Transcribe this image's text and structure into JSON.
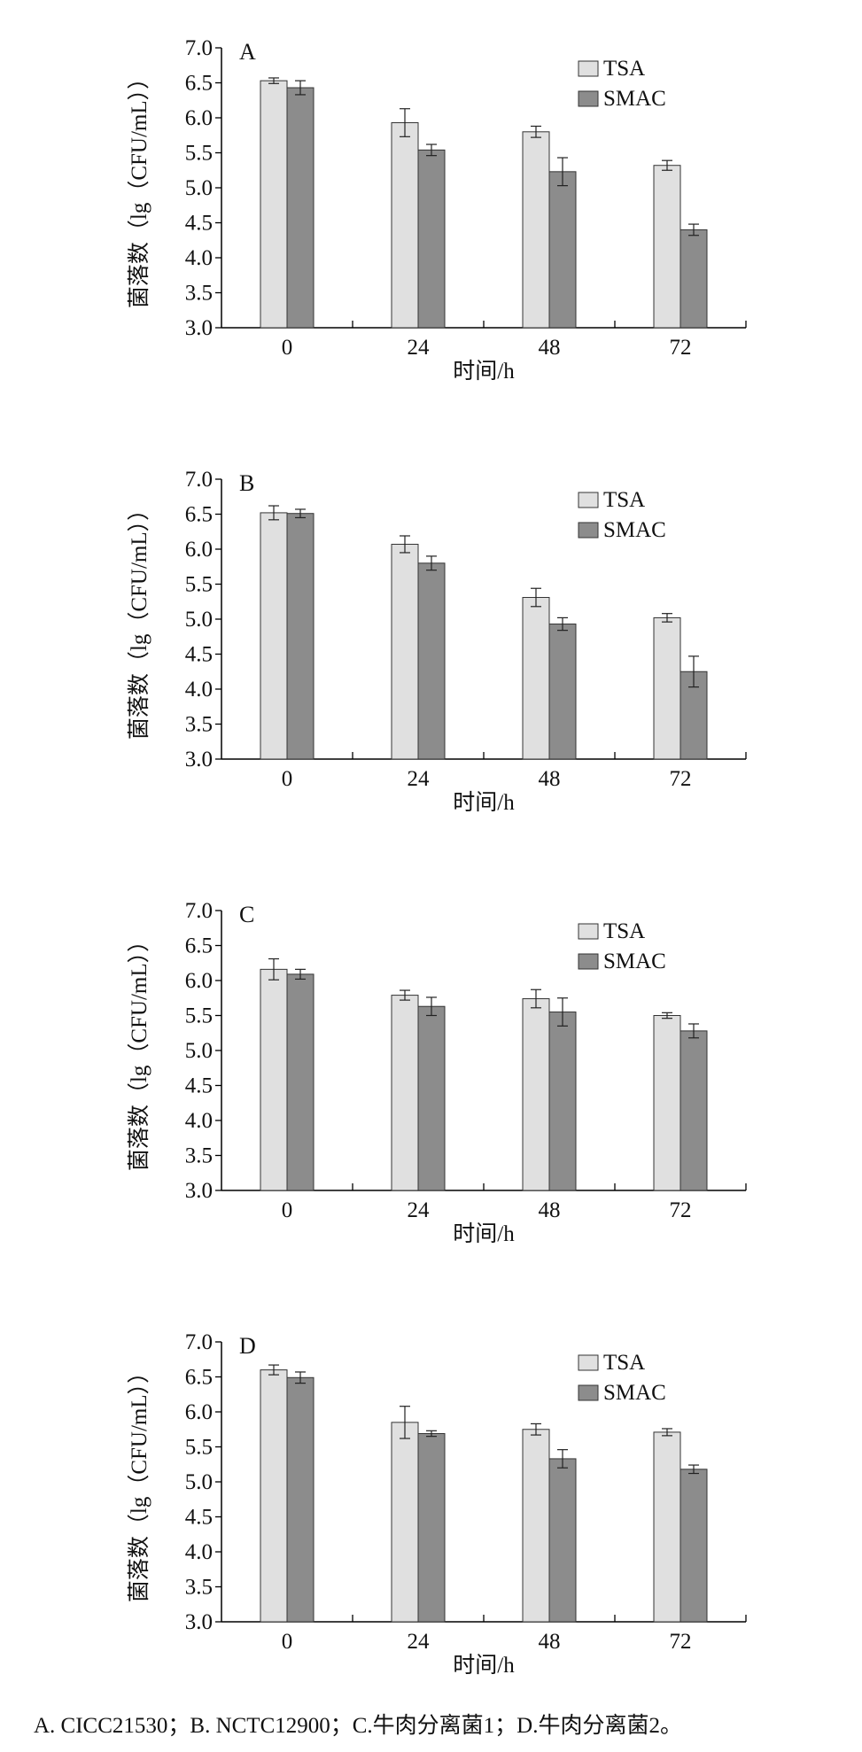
{
  "chart_data": [
    {
      "type": "bar",
      "panel_label": "A",
      "categories": [
        "0",
        "24",
        "48",
        "72"
      ],
      "xlabel": "时间/h",
      "ylabel": "菌落数（lg（CFU/mL））",
      "ylim": [
        3.0,
        7.0
      ],
      "yticks": [
        "3.0",
        "3.5",
        "4.0",
        "4.5",
        "5.0",
        "5.5",
        "6.0",
        "6.5",
        "7.0"
      ],
      "legend_position": "top-right",
      "series": [
        {
          "name": "TSA",
          "color": "#e0e0e0",
          "values": [
            6.53,
            5.93,
            5.8,
            5.32
          ],
          "errors": [
            0.04,
            0.2,
            0.08,
            0.07
          ]
        },
        {
          "name": "SMAC",
          "color": "#8c8c8c",
          "values": [
            6.43,
            5.54,
            5.23,
            4.4
          ],
          "errors": [
            0.1,
            0.08,
            0.2,
            0.08
          ]
        }
      ]
    },
    {
      "type": "bar",
      "panel_label": "B",
      "categories": [
        "0",
        "24",
        "48",
        "72"
      ],
      "xlabel": "时间/h",
      "ylabel": "菌落数（lg（CFU/mL））",
      "ylim": [
        3.0,
        7.0
      ],
      "yticks": [
        "3.0",
        "3.5",
        "4.0",
        "4.5",
        "5.0",
        "5.5",
        "6.0",
        "6.5",
        "7.0"
      ],
      "legend_position": "top-right",
      "series": [
        {
          "name": "TSA",
          "color": "#e0e0e0",
          "values": [
            6.52,
            6.07,
            5.31,
            5.02
          ],
          "errors": [
            0.1,
            0.12,
            0.13,
            0.06
          ]
        },
        {
          "name": "SMAC",
          "color": "#8c8c8c",
          "values": [
            6.51,
            5.8,
            4.93,
            4.25
          ],
          "errors": [
            0.06,
            0.1,
            0.09,
            0.22
          ]
        }
      ]
    },
    {
      "type": "bar",
      "panel_label": "C",
      "categories": [
        "0",
        "24",
        "48",
        "72"
      ],
      "xlabel": "时间/h",
      "ylabel": "菌落数（lg（CFU/mL））",
      "ylim": [
        3.0,
        7.0
      ],
      "yticks": [
        "3.0",
        "3.5",
        "4.0",
        "4.5",
        "5.0",
        "5.5",
        "6.0",
        "6.5",
        "7.0"
      ],
      "legend_position": "top-right",
      "series": [
        {
          "name": "TSA",
          "color": "#e0e0e0",
          "values": [
            6.16,
            5.79,
            5.74,
            5.5
          ],
          "errors": [
            0.15,
            0.07,
            0.13,
            0.04
          ]
        },
        {
          "name": "SMAC",
          "color": "#8c8c8c",
          "values": [
            6.09,
            5.63,
            5.55,
            5.28
          ],
          "errors": [
            0.07,
            0.13,
            0.2,
            0.1
          ]
        }
      ]
    },
    {
      "type": "bar",
      "panel_label": "D",
      "categories": [
        "0",
        "24",
        "48",
        "72"
      ],
      "xlabel": "时间/h",
      "ylabel": "菌落数（lg（CFU/mL））",
      "ylim": [
        3.0,
        7.0
      ],
      "yticks": [
        "3.0",
        "3.5",
        "4.0",
        "4.5",
        "5.0",
        "5.5",
        "6.0",
        "6.5",
        "7.0"
      ],
      "legend_position": "top-right",
      "series": [
        {
          "name": "TSA",
          "color": "#e0e0e0",
          "values": [
            6.6,
            5.85,
            5.75,
            5.71
          ],
          "errors": [
            0.07,
            0.23,
            0.08,
            0.05
          ]
        },
        {
          "name": "SMAC",
          "color": "#8c8c8c",
          "values": [
            6.49,
            5.69,
            5.33,
            5.18
          ],
          "errors": [
            0.08,
            0.04,
            0.13,
            0.06
          ]
        }
      ]
    }
  ],
  "caption": "A. CICC21530；B. NCTC12900；C.牛肉分离菌1；D.牛肉分离菌2。"
}
